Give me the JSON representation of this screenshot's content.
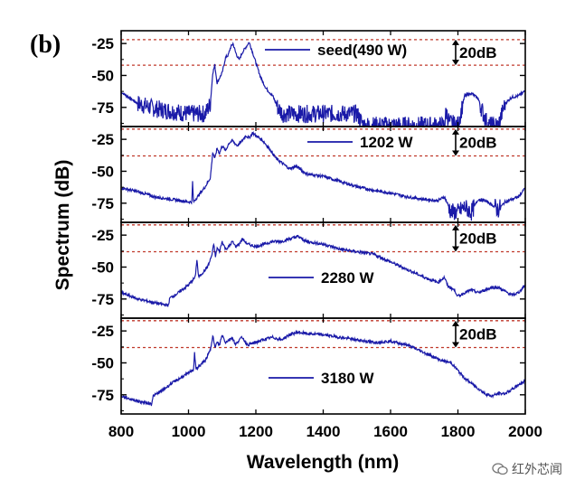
{
  "panel_label": "(b)",
  "watermark": "红外芯闻",
  "colors": {
    "trace": "#1a1aa8",
    "ref_line": "#c0392b",
    "axis": "#000000"
  },
  "chart_data": {
    "type": "line",
    "title": "",
    "xlabel": "Wavelength (nm)",
    "ylabel": "Spectrum (dB)",
    "xlim": [
      800,
      2000
    ],
    "x_ticks": [
      "800",
      "1000",
      "1200",
      "1400",
      "1600",
      "1800",
      "2000"
    ],
    "grid": false,
    "panels": [
      {
        "name": "seed",
        "legend": "seed(490 W)",
        "scale_label": "20dB",
        "ylim": [
          -90,
          -15
        ],
        "y_ticks": [
          "-25",
          "-50",
          "-75"
        ],
        "ref_lines": [
          -22,
          -42
        ],
        "noise_floor": -80,
        "points": [
          [
            800,
            -63
          ],
          [
            850,
            -72
          ],
          [
            900,
            -76
          ],
          [
            950,
            -78
          ],
          [
            1000,
            -80
          ],
          [
            1050,
            -80
          ],
          [
            1065,
            -72
          ],
          [
            1072,
            -48
          ],
          [
            1078,
            -42
          ],
          [
            1085,
            -56
          ],
          [
            1092,
            -52
          ],
          [
            1100,
            -48
          ],
          [
            1110,
            -36
          ],
          [
            1118,
            -34
          ],
          [
            1125,
            -28
          ],
          [
            1132,
            -25
          ],
          [
            1140,
            -32
          ],
          [
            1150,
            -38
          ],
          [
            1160,
            -32
          ],
          [
            1170,
            -28
          ],
          [
            1180,
            -24
          ],
          [
            1188,
            -30
          ],
          [
            1200,
            -40
          ],
          [
            1215,
            -52
          ],
          [
            1230,
            -60
          ],
          [
            1250,
            -66
          ],
          [
            1265,
            -75
          ],
          [
            1280,
            -80
          ],
          [
            1500,
            -80
          ],
          [
            1520,
            -89
          ],
          [
            1760,
            -89
          ],
          [
            1765,
            -78
          ],
          [
            1775,
            -87
          ],
          [
            1800,
            -89
          ],
          [
            1820,
            -66
          ],
          [
            1840,
            -64
          ],
          [
            1860,
            -68
          ],
          [
            1875,
            -80
          ],
          [
            1890,
            -89
          ],
          [
            1920,
            -89
          ],
          [
            1940,
            -72
          ],
          [
            1960,
            -67
          ],
          [
            1980,
            -66
          ],
          [
            2000,
            -62
          ]
        ]
      },
      {
        "name": "p1202",
        "legend": "1202 W",
        "scale_label": "20dB",
        "ylim": [
          -90,
          -15
        ],
        "y_ticks": [
          "-25",
          "-50",
          "-75"
        ],
        "ref_lines": [
          -17,
          -38
        ],
        "noise_floor": -86,
        "points": [
          [
            800,
            -63
          ],
          [
            850,
            -66
          ],
          [
            900,
            -70
          ],
          [
            950,
            -72
          ],
          [
            1000,
            -74
          ],
          [
            1010,
            -74
          ],
          [
            1012,
            -58
          ],
          [
            1015,
            -74
          ],
          [
            1050,
            -62
          ],
          [
            1065,
            -55
          ],
          [
            1072,
            -35
          ],
          [
            1078,
            -40
          ],
          [
            1085,
            -32
          ],
          [
            1092,
            -36
          ],
          [
            1100,
            -30
          ],
          [
            1110,
            -34
          ],
          [
            1120,
            -28
          ],
          [
            1130,
            -26
          ],
          [
            1145,
            -30
          ],
          [
            1160,
            -26
          ],
          [
            1170,
            -22
          ],
          [
            1180,
            -24
          ],
          [
            1190,
            -20
          ],
          [
            1200,
            -22
          ],
          [
            1220,
            -26
          ],
          [
            1240,
            -32
          ],
          [
            1260,
            -40
          ],
          [
            1280,
            -44
          ],
          [
            1300,
            -48
          ],
          [
            1320,
            -46
          ],
          [
            1350,
            -52
          ],
          [
            1400,
            -54
          ],
          [
            1450,
            -58
          ],
          [
            1500,
            -62
          ],
          [
            1550,
            -65
          ],
          [
            1600,
            -67
          ],
          [
            1650,
            -70
          ],
          [
            1700,
            -72
          ],
          [
            1740,
            -73
          ],
          [
            1760,
            -70
          ],
          [
            1770,
            -76
          ],
          [
            1780,
            -82
          ],
          [
            1800,
            -82
          ],
          [
            1820,
            -78
          ],
          [
            1840,
            -82
          ],
          [
            1860,
            -72
          ],
          [
            1880,
            -73
          ],
          [
            1900,
            -76
          ],
          [
            1920,
            -80
          ],
          [
            1940,
            -74
          ],
          [
            1960,
            -72
          ],
          [
            1980,
            -70
          ],
          [
            2000,
            -63
          ]
        ]
      },
      {
        "name": "p2280",
        "legend": "2280 W",
        "scale_label": "20dB",
        "ylim": [
          -90,
          -15
        ],
        "y_ticks": [
          "-25",
          "-50",
          "-75"
        ],
        "ref_lines": [
          -17,
          -38
        ],
        "noise_floor": -90,
        "points": [
          [
            800,
            -70
          ],
          [
            850,
            -75
          ],
          [
            900,
            -78
          ],
          [
            940,
            -80
          ],
          [
            945,
            -74
          ],
          [
            960,
            -72
          ],
          [
            1000,
            -64
          ],
          [
            1020,
            -58
          ],
          [
            1025,
            -44
          ],
          [
            1030,
            -58
          ],
          [
            1050,
            -52
          ],
          [
            1060,
            -48
          ],
          [
            1070,
            -40
          ],
          [
            1075,
            -32
          ],
          [
            1080,
            -42
          ],
          [
            1085,
            -35
          ],
          [
            1092,
            -38
          ],
          [
            1100,
            -30
          ],
          [
            1110,
            -36
          ],
          [
            1120,
            -34
          ],
          [
            1130,
            -30
          ],
          [
            1140,
            -34
          ],
          [
            1150,
            -32
          ],
          [
            1160,
            -28
          ],
          [
            1175,
            -32
          ],
          [
            1200,
            -34
          ],
          [
            1225,
            -32
          ],
          [
            1250,
            -30
          ],
          [
            1275,
            -30
          ],
          [
            1300,
            -28
          ],
          [
            1325,
            -26
          ],
          [
            1350,
            -30
          ],
          [
            1400,
            -32
          ],
          [
            1450,
            -36
          ],
          [
            1500,
            -38
          ],
          [
            1550,
            -40
          ],
          [
            1600,
            -46
          ],
          [
            1650,
            -52
          ],
          [
            1700,
            -58
          ],
          [
            1740,
            -62
          ],
          [
            1760,
            -58
          ],
          [
            1770,
            -65
          ],
          [
            1790,
            -68
          ],
          [
            1800,
            -73
          ],
          [
            1820,
            -70
          ],
          [
            1840,
            -68
          ],
          [
            1860,
            -70
          ],
          [
            1880,
            -68
          ],
          [
            1900,
            -66
          ],
          [
            1920,
            -66
          ],
          [
            1940,
            -69
          ],
          [
            1960,
            -72
          ],
          [
            1980,
            -70
          ],
          [
            2000,
            -64
          ]
        ]
      },
      {
        "name": "p3180",
        "legend": "3180 W",
        "scale_label": "20dB",
        "ylim": [
          -90,
          -15
        ],
        "y_ticks": [
          "-25",
          "-50",
          "-75"
        ],
        "ref_lines": [
          -17,
          -38
        ],
        "noise_floor": -90,
        "points": [
          [
            800,
            -76
          ],
          [
            850,
            -80
          ],
          [
            890,
            -82
          ],
          [
            895,
            -76
          ],
          [
            920,
            -72
          ],
          [
            950,
            -66
          ],
          [
            1000,
            -58
          ],
          [
            1015,
            -55
          ],
          [
            1018,
            -42
          ],
          [
            1022,
            -55
          ],
          [
            1050,
            -48
          ],
          [
            1065,
            -40
          ],
          [
            1072,
            -28
          ],
          [
            1078,
            -38
          ],
          [
            1085,
            -34
          ],
          [
            1092,
            -36
          ],
          [
            1100,
            -28
          ],
          [
            1110,
            -34
          ],
          [
            1120,
            -32
          ],
          [
            1130,
            -30
          ],
          [
            1140,
            -36
          ],
          [
            1150,
            -32
          ],
          [
            1160,
            -30
          ],
          [
            1175,
            -36
          ],
          [
            1200,
            -34
          ],
          [
            1220,
            -32
          ],
          [
            1250,
            -30
          ],
          [
            1275,
            -32
          ],
          [
            1300,
            -28
          ],
          [
            1325,
            -26
          ],
          [
            1350,
            -27
          ],
          [
            1400,
            -28
          ],
          [
            1450,
            -30
          ],
          [
            1500,
            -32
          ],
          [
            1550,
            -34
          ],
          [
            1600,
            -33
          ],
          [
            1650,
            -36
          ],
          [
            1700,
            -42
          ],
          [
            1750,
            -48
          ],
          [
            1780,
            -50
          ],
          [
            1800,
            -56
          ],
          [
            1820,
            -62
          ],
          [
            1840,
            -66
          ],
          [
            1860,
            -70
          ],
          [
            1880,
            -74
          ],
          [
            1900,
            -76
          ],
          [
            1920,
            -74
          ],
          [
            1940,
            -74
          ],
          [
            1960,
            -71
          ],
          [
            1980,
            -67
          ],
          [
            2000,
            -64
          ]
        ]
      }
    ]
  }
}
